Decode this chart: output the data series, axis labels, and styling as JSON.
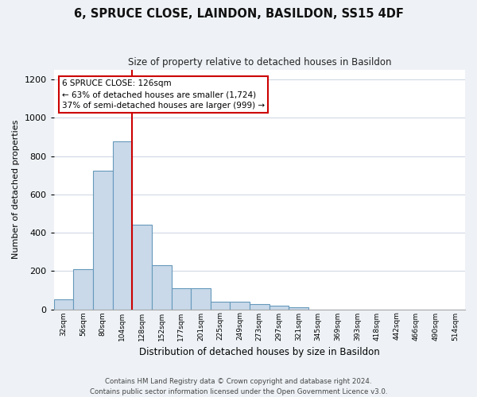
{
  "title": "6, SPRUCE CLOSE, LAINDON, BASILDON, SS15 4DF",
  "subtitle": "Size of property relative to detached houses in Basildon",
  "xlabel": "Distribution of detached houses by size in Basildon",
  "ylabel": "Number of detached properties",
  "bin_labels": [
    "32sqm",
    "56sqm",
    "80sqm",
    "104sqm",
    "128sqm",
    "152sqm",
    "177sqm",
    "201sqm",
    "225sqm",
    "249sqm",
    "273sqm",
    "297sqm",
    "321sqm",
    "345sqm",
    "369sqm",
    "393sqm",
    "418sqm",
    "442sqm",
    "466sqm",
    "490sqm",
    "514sqm"
  ],
  "bar_heights": [
    50,
    210,
    725,
    875,
    440,
    230,
    110,
    110,
    40,
    38,
    25,
    20,
    10,
    0,
    0,
    0,
    0,
    0,
    0,
    0,
    0
  ],
  "bar_color": "#c9d9e9",
  "bar_edge_color": "#6699bb",
  "vline_x_bin": 4,
  "vline_color": "#cc0000",
  "annotation_title": "6 SPRUCE CLOSE: 126sqm",
  "annotation_line1": "← 63% of detached houses are smaller (1,724)",
  "annotation_line2": "37% of semi-detached houses are larger (999) →",
  "annotation_box_color": "#ffffff",
  "annotation_box_edge": "#cc0000",
  "ylim": [
    0,
    1250
  ],
  "yticks": [
    0,
    200,
    400,
    600,
    800,
    1000,
    1200
  ],
  "footer_line1": "Contains HM Land Registry data © Crown copyright and database right 2024.",
  "footer_line2": "Contains public sector information licensed under the Open Government Licence v3.0.",
  "bg_color": "#eef2f6",
  "plot_bg_color": "#ffffff",
  "grid_color": "#d0d8e4"
}
